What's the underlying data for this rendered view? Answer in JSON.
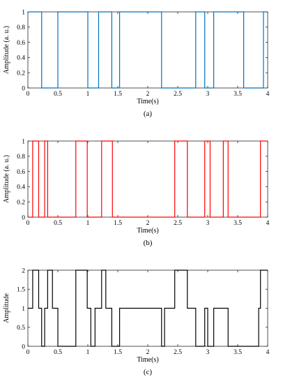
{
  "chart_data": [
    {
      "type": "line",
      "step": true,
      "panel_label": "(a)",
      "color": "#0072BD",
      "xlabel": "Time(s)",
      "ylabel": "Amplitude (a. u.)",
      "xlim": [
        0,
        4
      ],
      "ylim": [
        0,
        1
      ],
      "xticks": [
        "0",
        "0.5",
        "1",
        "1.5",
        "2",
        "2.5",
        "3",
        "3.5",
        "4"
      ],
      "yticks": [
        "0",
        "0.2",
        "0.4",
        "0.6",
        "0.8",
        "1"
      ],
      "x": [
        0,
        0.23,
        0.28,
        0.5,
        0.8,
        1.0,
        1.05,
        1.18,
        1.3,
        1.4,
        1.48,
        1.53,
        1.75,
        2.23,
        2.28,
        2.8,
        2.9,
        2.95,
        3.0,
        3.1,
        3.18,
        3.6,
        3.85,
        3.93,
        4.0
      ],
      "y": [
        1,
        0,
        0,
        1,
        1,
        0,
        0,
        1,
        1,
        0,
        0,
        1,
        1,
        0,
        0,
        1,
        1,
        0,
        0,
        1,
        1,
        0,
        0,
        1,
        1
      ],
      "grid": false
    },
    {
      "type": "line",
      "step": true,
      "panel_label": "(b)",
      "color": "#FF0000",
      "xlabel": "Time(s)",
      "ylabel": "Amplitude (a. u.)",
      "xlim": [
        0,
        4
      ],
      "ylim": [
        0,
        1
      ],
      "xticks": [
        "0",
        "0.5",
        "1",
        "1.5",
        "2",
        "2.5",
        "3",
        "3.5",
        "4"
      ],
      "yticks": [
        "0",
        "0.2",
        "0.4",
        "0.6",
        "0.8",
        "1"
      ],
      "x": [
        0,
        0.08,
        0.18,
        0.28,
        0.33,
        0.41,
        0.8,
        0.99,
        1.12,
        1.23,
        1.41,
        1.45,
        2.45,
        2.66,
        2.95,
        3.04,
        3.26,
        3.34,
        3.88,
        3.98,
        4.0
      ],
      "y": [
        0,
        1,
        0,
        1,
        0,
        0,
        1,
        0,
        0,
        1,
        0,
        0,
        1,
        0,
        1,
        0,
        1,
        0,
        1,
        1,
        1
      ],
      "grid": false
    },
    {
      "type": "line",
      "step": true,
      "panel_label": "(c)",
      "color": "#000000",
      "xlabel": "Time(s)",
      "ylabel": "Amplitude",
      "xlim": [
        0,
        4
      ],
      "ylim": [
        0,
        2
      ],
      "xticks": [
        "0",
        "0.5",
        "1",
        "1.5",
        "2",
        "2.5",
        "3",
        "3.5",
        "4"
      ],
      "yticks": [
        "0",
        "0.5",
        "1",
        "1.5",
        "2"
      ],
      "x": [
        0,
        0.08,
        0.18,
        0.23,
        0.28,
        0.33,
        0.41,
        0.5,
        0.8,
        0.99,
        1.05,
        1.12,
        1.23,
        1.3,
        1.4,
        1.45,
        1.53,
        1.75,
        2.23,
        2.28,
        2.45,
        2.66,
        2.8,
        2.9,
        2.95,
        3.0,
        3.04,
        3.1,
        3.18,
        3.26,
        3.34,
        3.6,
        3.85,
        3.88,
        3.93,
        3.98,
        4.0
      ],
      "y": [
        1,
        2,
        1,
        0,
        1,
        2,
        1,
        0,
        2,
        1,
        0,
        1,
        2,
        1,
        0,
        0,
        1,
        1,
        0,
        1,
        2,
        1,
        0,
        0,
        1,
        0,
        0,
        1,
        1,
        1,
        0,
        0,
        1,
        2,
        2,
        2,
        2
      ],
      "grid": false
    }
  ]
}
